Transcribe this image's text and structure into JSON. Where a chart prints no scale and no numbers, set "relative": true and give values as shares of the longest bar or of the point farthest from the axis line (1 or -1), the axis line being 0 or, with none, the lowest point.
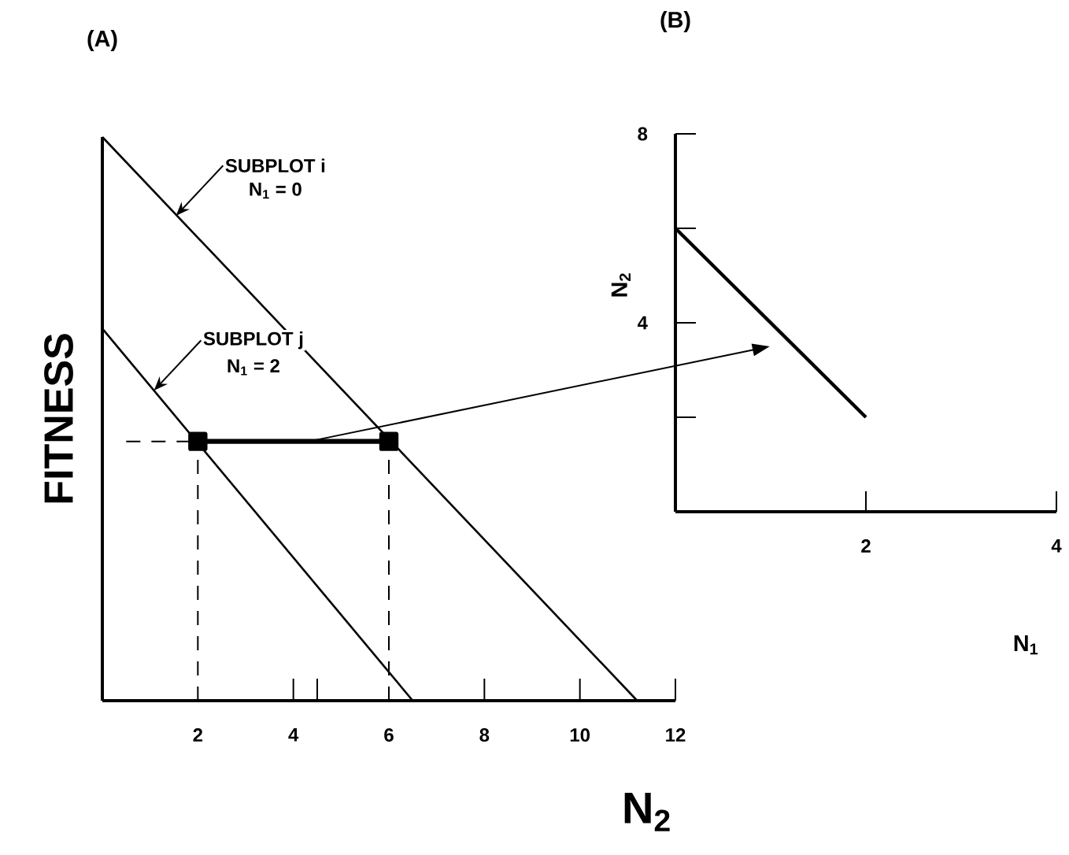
{
  "chart_data": [
    {
      "type": "line",
      "title": "(A)",
      "xlabel": "N$_{2}$",
      "ylabel": "FITNESS",
      "relative": true,
      "xlim": [
        0,
        12
      ],
      "xticks": [
        2,
        4,
        {
          "value": 4.5,
          "label": null
        },
        6,
        8,
        10,
        12
      ],
      "series": [
        {
          "color": "#000000",
          "x": [
            0,
            11.2
          ],
          "values": [
            1,
            0
          ]
        },
        {
          "color": "#000000",
          "x": [
            0,
            6.5
          ],
          "values": [
            0.66,
            0
          ]
        },
        {
          "color": "#000000",
          "x": [
            2,
            6
          ],
          "values": [
            0.46,
            0.46
          ],
          "marker": "square"
        },
        {
          "color": "#000000",
          "x": [
            0.5,
            2
          ],
          "values": [
            0.46,
            0.46
          ],
          "line_style": "dashed"
        },
        {
          "color": "#000000",
          "x": [
            2,
            2
          ],
          "values": [
            0,
            0.46
          ],
          "line_style": "dashed"
        },
        {
          "color": "#000000",
          "x": [
            6,
            6
          ],
          "values": [
            0,
            0.46
          ],
          "line_style": "dashed"
        }
      ],
      "annotations": [
        {
          "text": "SUBPLOT i",
          "x": 1.54,
          "y": 0.86
        },
        "N$_{1}$ = 0",
        {
          "text": "SUBPLOT j",
          "x": 1.08,
          "y": 0.55
        },
        "N$_{1}$ = 2"
      ]
    },
    {
      "type": "line",
      "title": "(B)",
      "xlabel": "N$_{1}$",
      "ylabel": "N$_{2}$",
      "xlim": [
        0,
        4
      ],
      "ylim": [
        0,
        8
      ],
      "xticks": [
        2,
        4
      ],
      "yticks": [
        {
          "value": 2,
          "label": null
        },
        4,
        {
          "value": 6,
          "label": null
        },
        8
      ],
      "series": [
        {
          "color": "#000000",
          "x": [
            0,
            2
          ],
          "values": [
            6,
            2
          ]
        }
      ]
    }
  ]
}
